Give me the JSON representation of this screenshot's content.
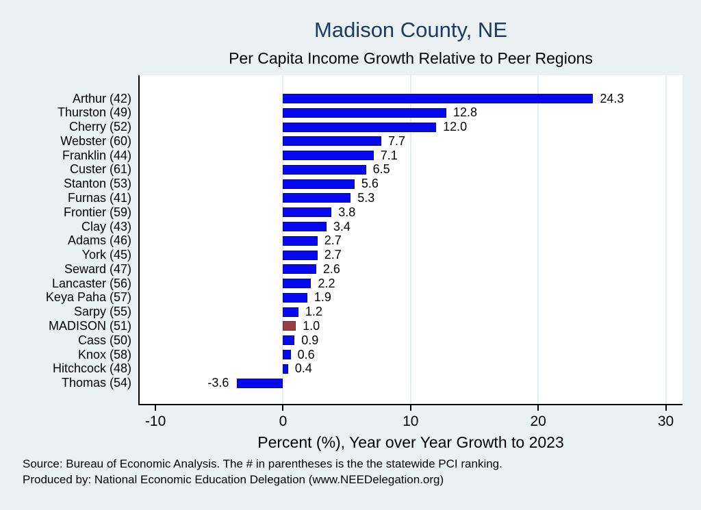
{
  "footer": {
    "line1": "Source: Bureau of Economic Analysis. The # in parentheses is the the statewide PCI ranking.",
    "line2": "Produced by: National Economic Education Delegation (www.NEEDelegation.org)"
  },
  "colors": {
    "background": "#e9f1f2",
    "plot_background": "#ffffff",
    "title_text": "#1d3a66",
    "bar_fill": "#0808f0",
    "bar_border": "#000a8c",
    "highlight_fill": "#9a3f44",
    "highlight_border": "#6e2a2f",
    "gridline": "#e4eef2",
    "axis": "#000000"
  },
  "chart_data": {
    "type": "bar",
    "orientation": "horizontal",
    "title": "Madison County, NE",
    "subtitle": "Per Capita Income Growth Relative to Peer Regions",
    "xlabel": "Percent (%), Year over Year Growth to 2023",
    "xlim": [
      -11.24,
      31.42
    ],
    "xticks": [
      -10,
      0,
      10,
      20,
      30
    ],
    "grid_ticks": [
      0,
      10,
      20,
      30
    ],
    "grid": "vertical gridlines at 0, 10, 20, 30",
    "legend": "none",
    "categories": [
      "Arthur (42)",
      "Thurston (49)",
      "Cherry (52)",
      "Webster (60)",
      "Franklin (44)",
      "Custer (61)",
      "Stanton (53)",
      "Furnas (41)",
      "Frontier (59)",
      "Clay (43)",
      "Adams (46)",
      "York (45)",
      "Seward (47)",
      "Lancaster (56)",
      "Keya Paha (57)",
      "Sarpy (55)",
      "MADISON (51)",
      "Cass (50)",
      "Knox (58)",
      "Hitchcock (48)",
      "Thomas (54)"
    ],
    "values": [
      24.3,
      12.8,
      12.0,
      7.7,
      7.1,
      6.5,
      5.6,
      5.3,
      3.8,
      3.4,
      2.7,
      2.7,
      2.6,
      2.2,
      1.9,
      1.2,
      1.0,
      0.9,
      0.6,
      0.4,
      -3.6
    ],
    "value_labels": [
      "24.3",
      "12.8",
      "12.0",
      "7.7",
      "7.1",
      "6.5",
      "5.6",
      "5.3",
      "3.8",
      "3.4",
      "2.7",
      "2.7",
      "2.6",
      "2.2",
      "1.9",
      "1.2",
      "1.0",
      "0.9",
      "0.6",
      "0.4",
      "-3.6"
    ],
    "highlight_index": 16,
    "highlight_category": "MADISON (51)"
  }
}
